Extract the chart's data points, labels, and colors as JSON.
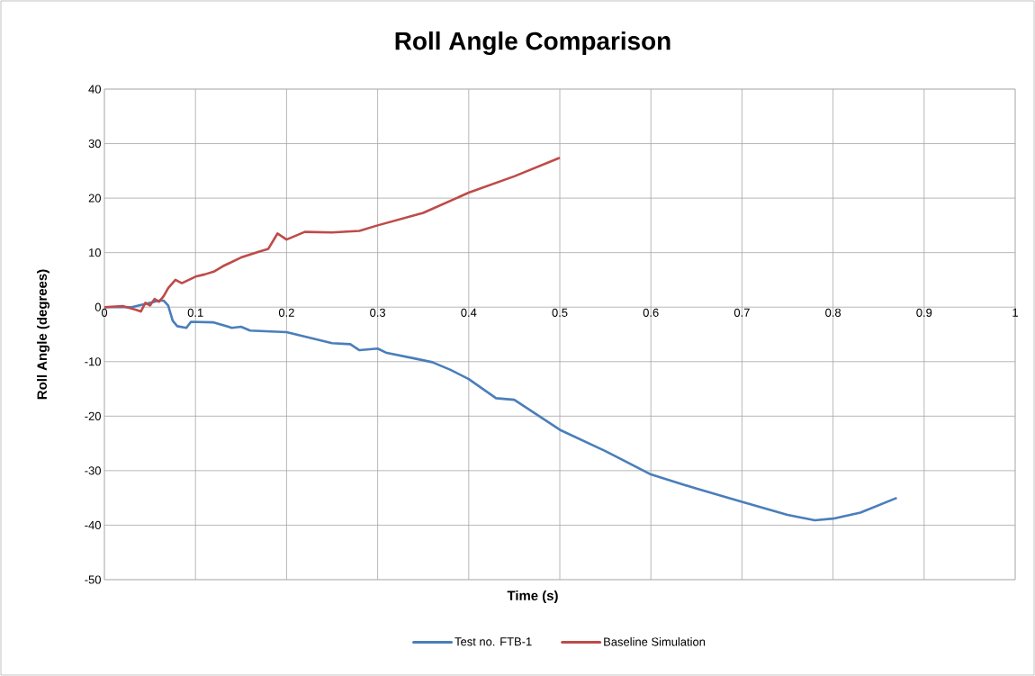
{
  "chart_data": {
    "type": "line",
    "title": "Roll Angle Comparison",
    "xlabel": "Time (s)",
    "ylabel": "Roll Angle (degrees)",
    "xlim": [
      0,
      1
    ],
    "ylim": [
      -50,
      40
    ],
    "xticks": [
      0,
      0.1,
      0.2,
      0.3,
      0.4,
      0.5,
      0.6,
      0.7,
      0.8,
      0.9,
      1
    ],
    "yticks": [
      -50,
      -40,
      -30,
      -20,
      -10,
      0,
      10,
      20,
      30,
      40
    ],
    "grid": true,
    "legend": "bottom",
    "line_style": "solid",
    "marker": "none",
    "series": [
      {
        "name": "Test no. FTB-1",
        "color": "#4a7ebb",
        "x": [
          0,
          0.03,
          0.06,
          0.065,
          0.07,
          0.075,
          0.08,
          0.09,
          0.095,
          0.12,
          0.14,
          0.15,
          0.16,
          0.2,
          0.25,
          0.27,
          0.28,
          0.3,
          0.31,
          0.34,
          0.36,
          0.38,
          0.4,
          0.43,
          0.45,
          0.5,
          0.55,
          0.6,
          0.65,
          0.7,
          0.75,
          0.78,
          0.8,
          0.83,
          0.87
        ],
        "values": [
          0,
          0,
          1.2,
          1.2,
          0.3,
          -2.5,
          -3.5,
          -3.8,
          -2.7,
          -2.8,
          -3.8,
          -3.6,
          -4.3,
          -4.6,
          -6.6,
          -6.8,
          -7.9,
          -7.6,
          -8.4,
          -9.4,
          -10.1,
          -11.5,
          -13.2,
          -16.7,
          -17,
          -22.5,
          -26.4,
          -30.7,
          -33.3,
          -35.7,
          -38.1,
          -39.1,
          -38.8,
          -37.7,
          -35
        ]
      },
      {
        "name": "Baseline Simulation",
        "color": "#be4b48",
        "x": [
          0,
          0.02,
          0.035,
          0.04,
          0.045,
          0.05,
          0.055,
          0.06,
          0.065,
          0.07,
          0.078,
          0.085,
          0.1,
          0.11,
          0.12,
          0.13,
          0.15,
          0.17,
          0.18,
          0.19,
          0.2,
          0.22,
          0.25,
          0.28,
          0.3,
          0.35,
          0.4,
          0.45,
          0.5
        ],
        "values": [
          0,
          0.2,
          -0.5,
          -0.8,
          0.8,
          0.3,
          1.5,
          1,
          2,
          3.5,
          5,
          4.4,
          5.6,
          6,
          6.5,
          7.5,
          9.1,
          10.2,
          10.7,
          13.5,
          12.4,
          13.8,
          13.7,
          14,
          15,
          17.3,
          21,
          24,
          27.4
        ]
      }
    ]
  }
}
